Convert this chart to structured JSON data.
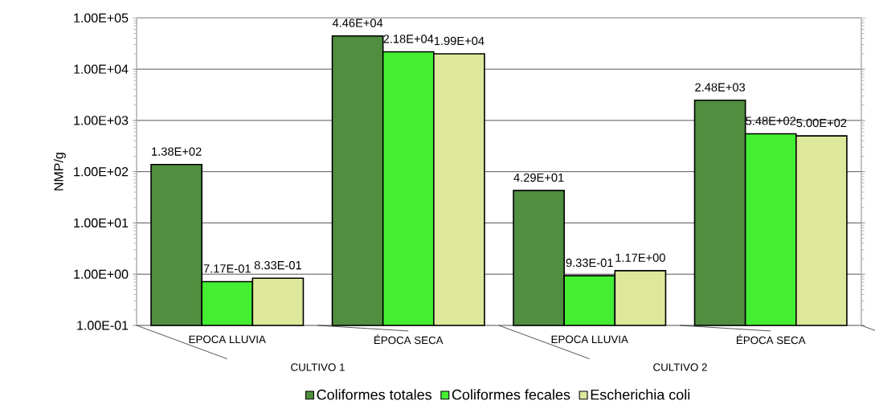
{
  "chart_data": {
    "type": "bar",
    "ylabel": "NMP/g",
    "categories": [
      "EPOCA LLUVIA",
      "ÉPOCA SECA",
      "EPOCA LLUVIA",
      "ÉPOCA SECA"
    ],
    "annotations": [
      "CULTIVO 1",
      "CULTIVO 2"
    ],
    "series": [
      {
        "name": "Coliformes totales",
        "color": "#4f8f3f",
        "values": [
          138,
          44600,
          42.9,
          2480
        ],
        "value_labels": [
          "1.38E+02",
          "4.46E+04",
          "4.29E+01",
          "2.48E+03"
        ]
      },
      {
        "name": "Coliformes fecales",
        "color": "#44ee33",
        "values": [
          0.717,
          21800,
          0.933,
          548
        ],
        "value_labels": [
          "7.17E-01",
          "2.18E+04",
          "9.33E-01",
          "5.48E+02"
        ]
      },
      {
        "name": "Escherichia coli",
        "color": "#dde89a",
        "values": [
          0.833,
          19900,
          1.17,
          500
        ],
        "value_labels": [
          "8.33E-01",
          "1.99E+04",
          "1.17E+00",
          "5.00E+02"
        ]
      }
    ],
    "log": "y",
    "ylim": [
      0.1,
      100000
    ],
    "yticks": [
      {
        "value": 0.1,
        "label": "1.00E-01"
      },
      {
        "value": 1,
        "label": "1.00E+00"
      },
      {
        "value": 10,
        "label": "1.00E+01"
      },
      {
        "value": 100,
        "label": "1.00E+02"
      },
      {
        "value": 1000,
        "label": "1.00E+03"
      },
      {
        "value": 10000,
        "label": "1.00E+04"
      },
      {
        "value": 100000,
        "label": "1.00E+05"
      }
    ],
    "grid": "y",
    "legend": "bottom"
  }
}
